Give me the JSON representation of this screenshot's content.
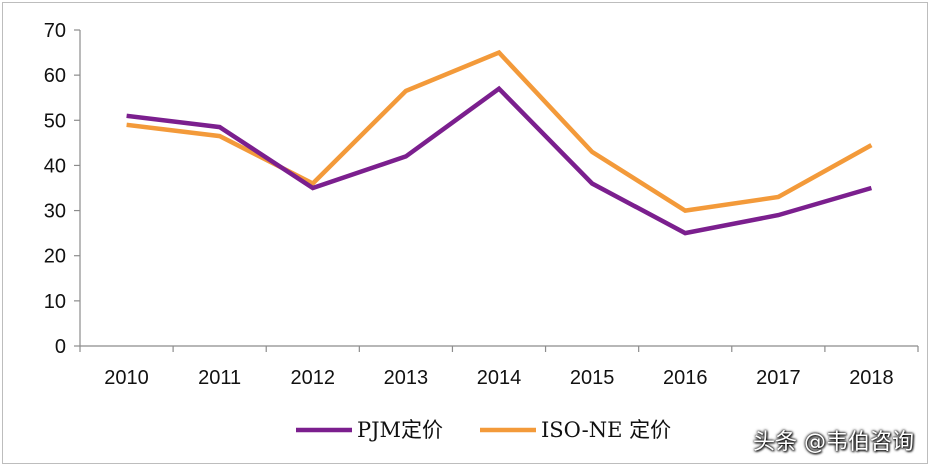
{
  "chart_data": {
    "type": "line",
    "title": "",
    "xlabel": "",
    "ylabel": "",
    "categories": [
      "2010",
      "2011",
      "2012",
      "2013",
      "2014",
      "2015",
      "2016",
      "2017",
      "2018"
    ],
    "series": [
      {
        "name": "PJM定价",
        "color": "#7B1F8E",
        "values": [
          51,
          48.5,
          35,
          42,
          57,
          36,
          25,
          29,
          35
        ]
      },
      {
        "name": "ISO-NE 定价",
        "color": "#F39A3A",
        "values": [
          49,
          46.5,
          36,
          56.5,
          65,
          43,
          30,
          33,
          44.5
        ]
      }
    ],
    "ylim": [
      0,
      70
    ],
    "yticks": [
      0,
      10,
      20,
      30,
      40,
      50,
      60,
      70
    ],
    "grid": false,
    "legend_position": "bottom"
  },
  "watermark": "头条 @韦伯咨询"
}
